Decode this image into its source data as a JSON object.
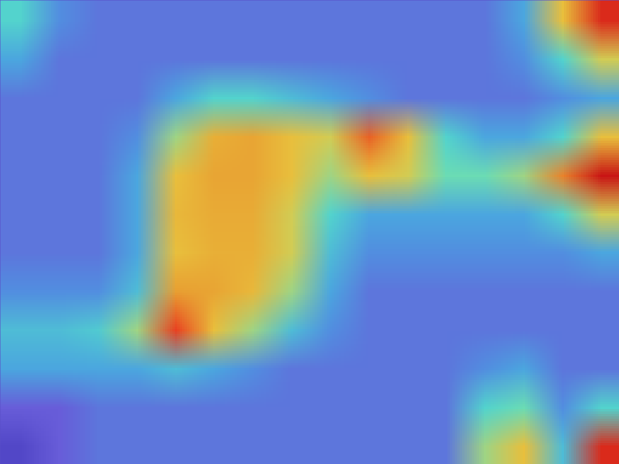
{
  "chart_data": {
    "type": "heatmap",
    "tick_labels": false,
    "value_range": [
      0,
      1
    ],
    "cells": [
      [
        0.4,
        0.25,
        0.2,
        0.2,
        0.2,
        0.2,
        0.2,
        0.2,
        0.2,
        0.2,
        0.2,
        0.2,
        0.2,
        0.3,
        0.6,
        0.9
      ],
      [
        0.3,
        0.2,
        0.2,
        0.2,
        0.2,
        0.2,
        0.2,
        0.2,
        0.2,
        0.2,
        0.2,
        0.2,
        0.2,
        0.25,
        0.4,
        0.55
      ],
      [
        0.2,
        0.2,
        0.2,
        0.2,
        0.3,
        0.4,
        0.4,
        0.35,
        0.3,
        0.25,
        0.2,
        0.2,
        0.2,
        0.2,
        0.25,
        0.3
      ],
      [
        0.2,
        0.2,
        0.2,
        0.25,
        0.5,
        0.65,
        0.68,
        0.6,
        0.55,
        0.8,
        0.6,
        0.4,
        0.3,
        0.3,
        0.4,
        0.6
      ],
      [
        0.2,
        0.2,
        0.2,
        0.3,
        0.6,
        0.68,
        0.68,
        0.6,
        0.5,
        0.6,
        0.55,
        0.45,
        0.45,
        0.5,
        0.75,
        0.95
      ],
      [
        0.2,
        0.2,
        0.2,
        0.3,
        0.62,
        0.66,
        0.66,
        0.55,
        0.4,
        0.3,
        0.3,
        0.3,
        0.3,
        0.3,
        0.4,
        0.55
      ],
      [
        0.2,
        0.2,
        0.2,
        0.3,
        0.6,
        0.65,
        0.65,
        0.55,
        0.35,
        0.25,
        0.25,
        0.25,
        0.25,
        0.25,
        0.25,
        0.3
      ],
      [
        0.25,
        0.25,
        0.25,
        0.35,
        0.7,
        0.68,
        0.62,
        0.5,
        0.3,
        0.2,
        0.2,
        0.2,
        0.2,
        0.2,
        0.2,
        0.2
      ],
      [
        0.35,
        0.35,
        0.38,
        0.5,
        0.85,
        0.6,
        0.5,
        0.35,
        0.25,
        0.2,
        0.2,
        0.2,
        0.2,
        0.2,
        0.2,
        0.2
      ],
      [
        0.3,
        0.3,
        0.3,
        0.3,
        0.35,
        0.3,
        0.25,
        0.2,
        0.2,
        0.2,
        0.2,
        0.2,
        0.25,
        0.3,
        0.2,
        0.2
      ],
      [
        0.15,
        0.15,
        0.2,
        0.2,
        0.2,
        0.2,
        0.2,
        0.2,
        0.2,
        0.2,
        0.2,
        0.2,
        0.4,
        0.45,
        0.25,
        0.4
      ],
      [
        0.1,
        0.15,
        0.2,
        0.2,
        0.2,
        0.2,
        0.2,
        0.2,
        0.2,
        0.2,
        0.2,
        0.2,
        0.5,
        0.6,
        0.35,
        0.9
      ]
    ]
  }
}
